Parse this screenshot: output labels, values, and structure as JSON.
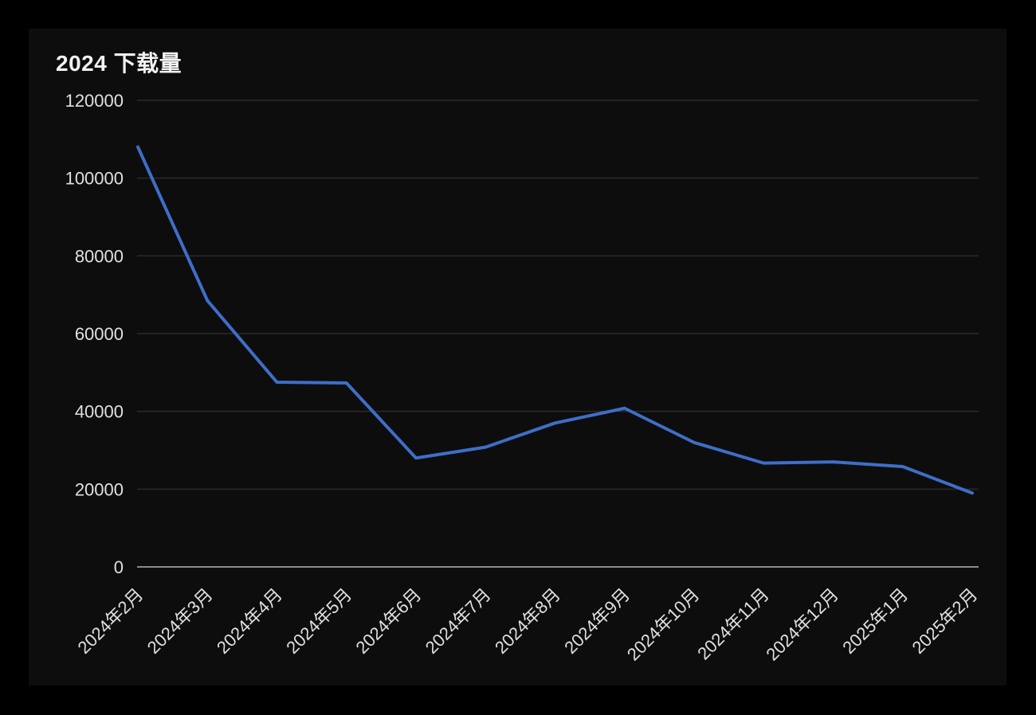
{
  "page": {
    "title": "2024 下载量"
  },
  "colors": {
    "background": "#000000",
    "card_bg": "#0d0d0d",
    "title": "#f2f2f2",
    "grid": "#2b2b2b",
    "axis": "#b3b3b3",
    "tick_label": "#e0e0e0",
    "line": "#3e6ec8"
  },
  "chart_data": {
    "type": "line",
    "title": "2024 下载量",
    "categories": [
      "2024年2月",
      "2024年3月",
      "2024年4月",
      "2024年5月",
      "2024年6月",
      "2024年7月",
      "2024年8月",
      "2024年9月",
      "2024年10月",
      "2024年11月",
      "2024年12月",
      "2025年1月",
      "2025年2月"
    ],
    "values": [
      108000,
      68500,
      47500,
      47300,
      28000,
      30800,
      37000,
      40800,
      32000,
      26700,
      27000,
      25800,
      19000
    ],
    "series_name": "下载量",
    "xlabel": "",
    "ylabel": "",
    "ylim": [
      0,
      120000
    ],
    "yticks": [
      0,
      20000,
      40000,
      60000,
      80000,
      100000,
      120000
    ],
    "ytick_labels": [
      "0",
      "20000",
      "40000",
      "60000",
      "80000",
      "100000",
      "120000"
    ],
    "grid": true,
    "legend": "none",
    "x_label_rotation": -45,
    "line_width": 4
  }
}
